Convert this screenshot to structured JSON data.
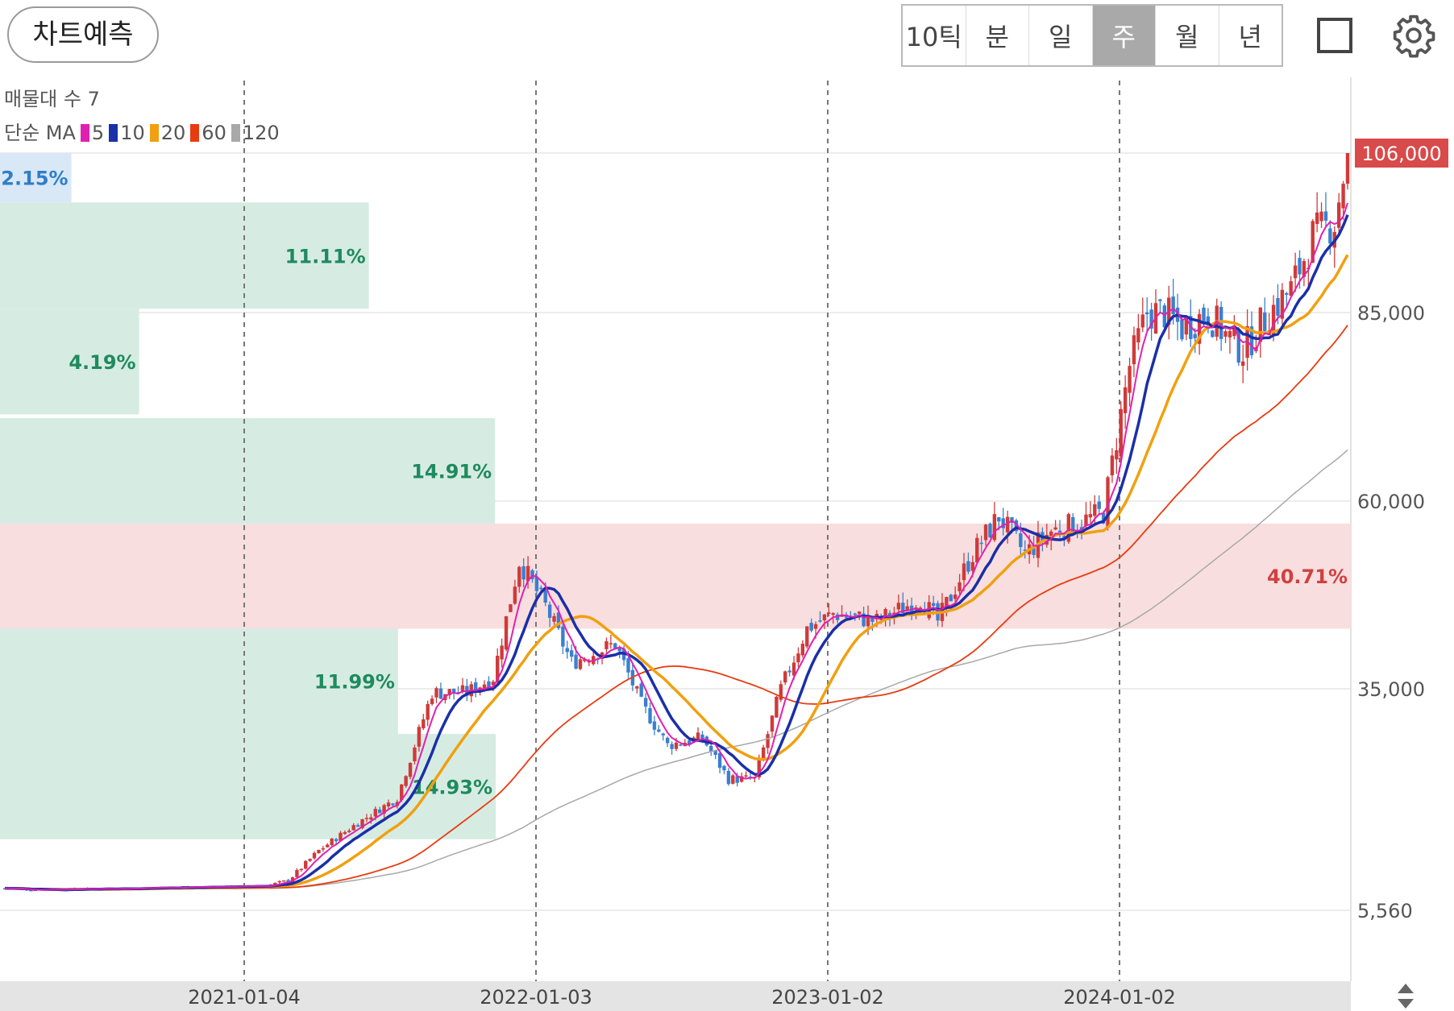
{
  "toolbar": {
    "predict_label": "차트예측",
    "periods": [
      "10틱",
      "분",
      "일",
      "주",
      "월",
      "년"
    ],
    "active_period": "주"
  },
  "legend": {
    "volume_profile_label": "매물대 수 7",
    "ma_label": "단순 MA",
    "ma": [
      {
        "period": "5",
        "color": "#e020b0"
      },
      {
        "period": "10",
        "color": "#1a2fa8"
      },
      {
        "period": "20",
        "color": "#f0a010"
      },
      {
        "period": "60",
        "color": "#e83c10"
      },
      {
        "period": "120",
        "color": "#a8a8a8"
      }
    ]
  },
  "colors": {
    "up": "#d03a3a",
    "down": "#3a7fd0",
    "profile": "#d6ece3",
    "profile_top": "#d9e8f7",
    "profile_max": "#f8dede",
    "price_tag": "#d94a4a"
  },
  "chart_data": {
    "type": "candlestick",
    "interval": "weekly",
    "x_ticks": [
      "2021-01-04",
      "2022-01-03",
      "2023-01-02",
      "2024-01-02"
    ],
    "y_ticks": [
      "106,000",
      "85,000",
      "60,000",
      "35,000",
      "5,560"
    ],
    "y_tick_values": [
      106000,
      85000,
      60000,
      35000,
      5560
    ],
    "last_price": "106,000",
    "volume_profile": [
      {
        "from": 99500,
        "to": 106500,
        "pct": "2.15%",
        "share": 2.15
      },
      {
        "from": 85500,
        "to": 99500,
        "pct": "11.11%",
        "share": 11.11
      },
      {
        "from": 71500,
        "to": 85500,
        "pct": "4.19%",
        "share": 4.19
      },
      {
        "from": 57000,
        "to": 71000,
        "pct": "14.91%",
        "share": 14.91
      },
      {
        "from": 43000,
        "to": 57000,
        "pct": "40.71%",
        "share": 40.71
      },
      {
        "from": 29000,
        "to": 43000,
        "pct": "11.99%",
        "share": 11.99
      },
      {
        "from": 15000,
        "to": 29000,
        "pct": "14.93%",
        "share": 14.93
      }
    ],
    "series": [
      {
        "name": "MA 5",
        "values": []
      },
      {
        "name": "MA 10",
        "values": []
      },
      {
        "name": "MA 20",
        "values": []
      },
      {
        "name": "MA 60",
        "values": []
      },
      {
        "name": "MA 120",
        "values": []
      }
    ]
  }
}
